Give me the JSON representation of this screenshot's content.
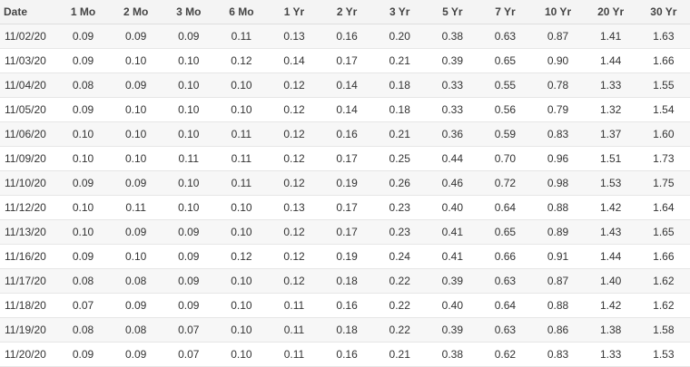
{
  "table": {
    "headers": [
      "Date",
      "1 Mo",
      "2 Mo",
      "3 Mo",
      "6 Mo",
      "1 Yr",
      "2 Yr",
      "3 Yr",
      "5 Yr",
      "7 Yr",
      "10 Yr",
      "20 Yr",
      "30 Yr"
    ],
    "rows": [
      [
        "11/02/20",
        "0.09",
        "0.09",
        "0.09",
        "0.11",
        "0.13",
        "0.16",
        "0.20",
        "0.38",
        "0.63",
        "0.87",
        "1.41",
        "1.63"
      ],
      [
        "11/03/20",
        "0.09",
        "0.10",
        "0.10",
        "0.12",
        "0.14",
        "0.17",
        "0.21",
        "0.39",
        "0.65",
        "0.90",
        "1.44",
        "1.66"
      ],
      [
        "11/04/20",
        "0.08",
        "0.09",
        "0.10",
        "0.10",
        "0.12",
        "0.14",
        "0.18",
        "0.33",
        "0.55",
        "0.78",
        "1.33",
        "1.55"
      ],
      [
        "11/05/20",
        "0.09",
        "0.10",
        "0.10",
        "0.10",
        "0.12",
        "0.14",
        "0.18",
        "0.33",
        "0.56",
        "0.79",
        "1.32",
        "1.54"
      ],
      [
        "11/06/20",
        "0.10",
        "0.10",
        "0.10",
        "0.11",
        "0.12",
        "0.16",
        "0.21",
        "0.36",
        "0.59",
        "0.83",
        "1.37",
        "1.60"
      ],
      [
        "11/09/20",
        "0.10",
        "0.10",
        "0.11",
        "0.11",
        "0.12",
        "0.17",
        "0.25",
        "0.44",
        "0.70",
        "0.96",
        "1.51",
        "1.73"
      ],
      [
        "11/10/20",
        "0.09",
        "0.09",
        "0.10",
        "0.11",
        "0.12",
        "0.19",
        "0.26",
        "0.46",
        "0.72",
        "0.98",
        "1.53",
        "1.75"
      ],
      [
        "11/12/20",
        "0.10",
        "0.11",
        "0.10",
        "0.10",
        "0.13",
        "0.17",
        "0.23",
        "0.40",
        "0.64",
        "0.88",
        "1.42",
        "1.64"
      ],
      [
        "11/13/20",
        "0.10",
        "0.09",
        "0.09",
        "0.10",
        "0.12",
        "0.17",
        "0.23",
        "0.41",
        "0.65",
        "0.89",
        "1.43",
        "1.65"
      ],
      [
        "11/16/20",
        "0.09",
        "0.10",
        "0.09",
        "0.12",
        "0.12",
        "0.19",
        "0.24",
        "0.41",
        "0.66",
        "0.91",
        "1.44",
        "1.66"
      ],
      [
        "11/17/20",
        "0.08",
        "0.08",
        "0.09",
        "0.10",
        "0.12",
        "0.18",
        "0.22",
        "0.39",
        "0.63",
        "0.87",
        "1.40",
        "1.62"
      ],
      [
        "11/18/20",
        "0.07",
        "0.09",
        "0.09",
        "0.10",
        "0.11",
        "0.16",
        "0.22",
        "0.40",
        "0.64",
        "0.88",
        "1.42",
        "1.62"
      ],
      [
        "11/19/20",
        "0.08",
        "0.08",
        "0.07",
        "0.10",
        "0.11",
        "0.18",
        "0.22",
        "0.39",
        "0.63",
        "0.86",
        "1.38",
        "1.58"
      ],
      [
        "11/20/20",
        "0.09",
        "0.09",
        "0.07",
        "0.10",
        "0.11",
        "0.16",
        "0.21",
        "0.38",
        "0.62",
        "0.83",
        "1.33",
        "1.53"
      ]
    ]
  },
  "colors": {
    "header_bg": "#f4f4f4",
    "row_alt_bg": "#f7f7f7",
    "text": "#333333"
  }
}
